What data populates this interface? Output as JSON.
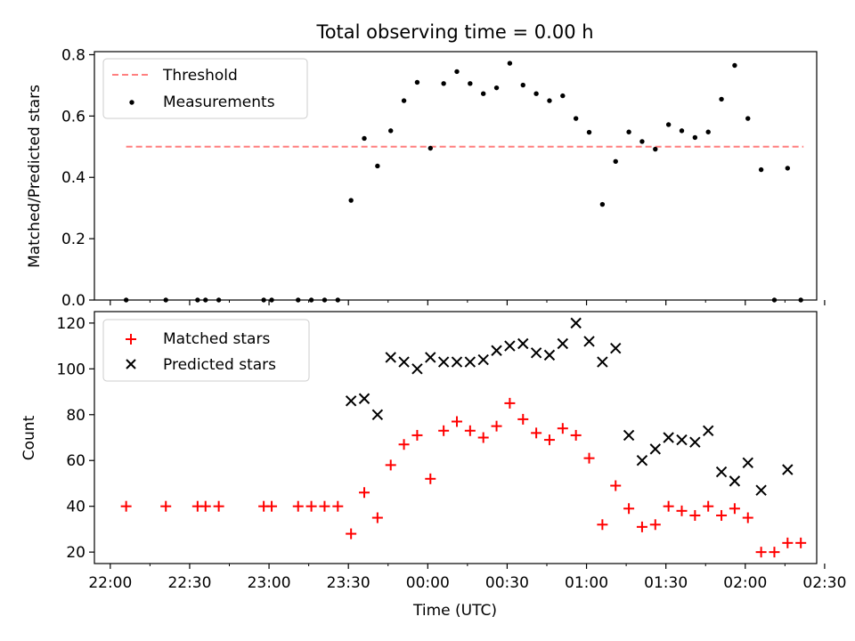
{
  "figure": {
    "title": "Total observing time = 0.00 h",
    "xlabel": "Time (UTC)",
    "x_ticks": [
      "22:00",
      "22:30",
      "23:00",
      "23:30",
      "00:00",
      "00:30",
      "01:00",
      "01:30",
      "02:00",
      "02:30"
    ]
  },
  "chart_data": [
    {
      "type": "scatter",
      "title": "Total observing time = 0.00 h",
      "ylabel": "Matched/Predicted stars",
      "ylim": [
        0,
        0.81
      ],
      "y_ticks": [
        "0.0",
        "0.2",
        "0.4",
        "0.6",
        "0.8"
      ],
      "x_unit": "minutes from 22:00 UTC",
      "xlim": [
        -6,
        267
      ],
      "legend_position": "upper-left",
      "threshold": {
        "name": "Threshold",
        "y": 0.5,
        "x_start": 6,
        "x_end": 262,
        "color": "#ff7f7f",
        "style": "dashed"
      },
      "series": [
        {
          "name": "Measurements",
          "marker": "dot",
          "color": "#000000",
          "x": [
            6,
            21,
            33,
            36,
            41,
            58,
            61,
            71,
            76,
            81,
            86,
            91,
            96,
            101,
            106,
            111,
            116,
            121,
            126,
            131,
            136,
            141,
            146,
            151,
            156,
            161,
            166,
            171,
            176,
            181,
            186,
            191,
            196,
            201,
            206,
            211,
            216,
            221,
            226,
            231,
            236,
            241,
            246,
            251,
            256,
            261
          ],
          "y": [
            0,
            0,
            0,
            0,
            0,
            0,
            0,
            0,
            0,
            0,
            0,
            0.325,
            0.527,
            0.437,
            0.552,
            0.65,
            0.71,
            0.495,
            0.706,
            0.745,
            0.706,
            0.673,
            0.692,
            0.772,
            0.701,
            0.673,
            0.65,
            0.666,
            0.592,
            0.547,
            0.312,
            0.452,
            0.548,
            0.517,
            0.492,
            0.572,
            0.552,
            0.53,
            0.548,
            0.655,
            0.765,
            0.592,
            0.425,
            0,
            0.43,
            0
          ]
        }
      ]
    },
    {
      "type": "scatter",
      "ylabel": "Count",
      "ylim": [
        15,
        125
      ],
      "y_ticks": [
        "20",
        "40",
        "60",
        "80",
        "100",
        "120"
      ],
      "x_unit": "minutes from 22:00 UTC",
      "xlim": [
        -6,
        267
      ],
      "legend_position": "upper-left",
      "series": [
        {
          "name": "Matched stars",
          "marker": "plus",
          "color": "#ff0000",
          "x": [
            6,
            21,
            33,
            36,
            41,
            58,
            61,
            71,
            76,
            81,
            86,
            91,
            96,
            101,
            106,
            111,
            116,
            121,
            126,
            131,
            136,
            141,
            146,
            151,
            156,
            161,
            166,
            171,
            176,
            181,
            186,
            191,
            196,
            201,
            206,
            211,
            216,
            221,
            226,
            231,
            236,
            241,
            246,
            251,
            256,
            261
          ],
          "y": [
            40,
            40,
            40,
            40,
            40,
            40,
            40,
            40,
            40,
            40,
            40,
            28,
            46,
            35,
            58,
            67,
            71,
            52,
            73,
            77,
            73,
            70,
            75,
            85,
            78,
            72,
            69,
            74,
            71,
            61,
            32,
            49,
            39,
            31,
            32,
            40,
            38,
            36,
            40,
            36,
            39,
            35,
            20,
            20,
            24,
            24
          ]
        },
        {
          "name": "Predicted stars",
          "marker": "x",
          "color": "#000000",
          "x": [
            91,
            96,
            101,
            106,
            111,
            116,
            121,
            126,
            131,
            136,
            141,
            146,
            151,
            156,
            161,
            166,
            171,
            176,
            181,
            186,
            191,
            196,
            201,
            206,
            211,
            216,
            221,
            226,
            231,
            236,
            241,
            246,
            256
          ],
          "y": [
            86,
            87,
            80,
            105,
            103,
            100,
            105,
            103,
            103,
            103,
            104,
            108,
            110,
            111,
            107,
            106,
            111,
            120,
            112,
            103,
            109,
            71,
            60,
            65,
            70,
            69,
            68,
            73,
            55,
            51,
            59,
            47,
            56
          ]
        }
      ]
    }
  ]
}
